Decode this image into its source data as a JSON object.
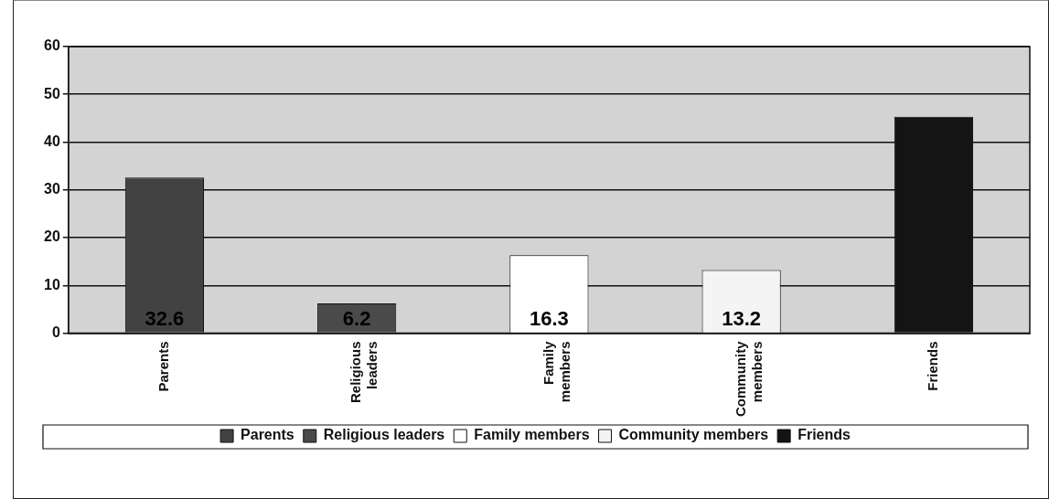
{
  "chart_data": {
    "type": "bar",
    "categories": [
      "Parents",
      "Religious leaders",
      "Family members",
      "Community members",
      "Friends"
    ],
    "series": [
      {
        "name": "Parents",
        "color": "#424242",
        "values": [
          32.6,
          null,
          null,
          null,
          null
        ],
        "value_labels": [
          "32.6",
          null,
          null,
          null,
          null
        ]
      },
      {
        "name": "Religious leaders",
        "color": "#4a4a4a",
        "values": [
          null,
          6.2,
          null,
          null,
          null
        ],
        "value_labels": [
          null,
          "6.2",
          null,
          null,
          null
        ]
      },
      {
        "name": "Family members",
        "color": "#ffffff",
        "values": [
          null,
          null,
          16.3,
          null,
          null
        ],
        "value_labels": [
          null,
          null,
          "16.3",
          null,
          null
        ]
      },
      {
        "name": "Community members",
        "color": "#f4f4f4",
        "values": [
          null,
          null,
          null,
          13.2,
          null
        ],
        "value_labels": [
          null,
          null,
          null,
          "13.2",
          null
        ]
      },
      {
        "name": "Friends",
        "color": "#141414",
        "values": [
          null,
          null,
          null,
          null,
          45.3
        ]
      }
    ],
    "ylim": [
      0,
      60
    ],
    "yticks": [
      0,
      10,
      20,
      30,
      40,
      50,
      60
    ],
    "grid": "y",
    "legend": "bottom"
  }
}
